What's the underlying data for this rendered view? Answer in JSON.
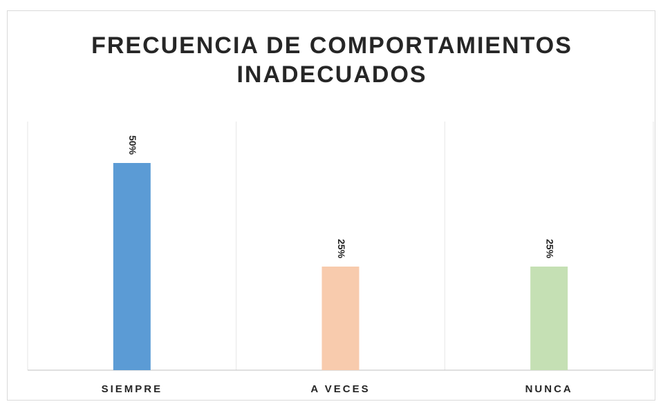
{
  "chart_data": {
    "type": "bar",
    "title": "FRECUENCIA DE COMPORTAMIENTOS INADECUADOS",
    "categories": [
      "SIEMPRE",
      "A VECES",
      "NUNCA"
    ],
    "values": [
      50,
      25,
      25
    ],
    "value_labels": [
      "50%",
      "25%",
      "25%"
    ],
    "colors": [
      "#5b9bd5",
      "#f8cbad",
      "#c5e0b4"
    ],
    "ylim": [
      0,
      60
    ]
  }
}
